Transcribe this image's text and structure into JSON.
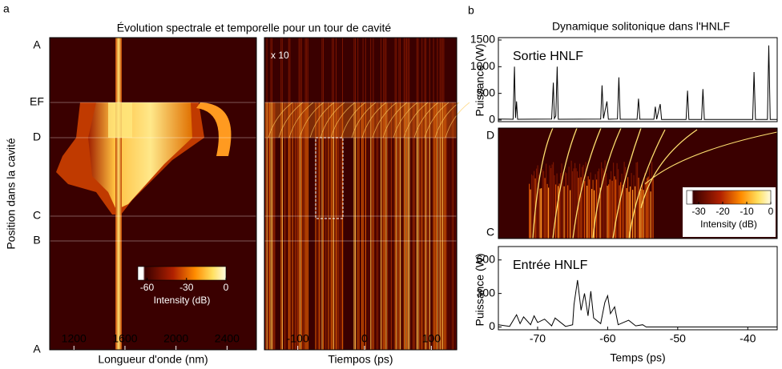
{
  "panel_labels": [
    "a",
    "b"
  ],
  "chart_data": [
    {
      "type": "heatmap",
      "title": "Évolution spectrale et temporelle pour un tour de cavité",
      "xlabel": "Longueur d'onde (nm)",
      "ylabel": "Position dans la cavité",
      "xlim": [
        1010,
        2630
      ],
      "xticks": [
        1200,
        1600,
        2000,
        2400
      ],
      "y_markers": [
        "A",
        "EF",
        "D",
        "C",
        "B",
        "A"
      ],
      "colorbar": {
        "label": "Intensity (dB)",
        "lim": [
          -67,
          0
        ],
        "ticks": [
          -60,
          -30,
          0
        ]
      }
    },
    {
      "type": "heatmap",
      "xlabel": "Tiempos (ps)",
      "xlim": [
        -150,
        138
      ],
      "xticks": [
        -100,
        0,
        100
      ],
      "annotation": "x 10"
    },
    {
      "type": "line",
      "title": "Dynamique solitonique dans l'HNLF",
      "ylabel": "Puissance (W)",
      "annotation": "Sortie HNLF",
      "xlim": [
        -75.6,
        -35.8
      ],
      "ylim": [
        -30,
        1545
      ],
      "yticks": [
        0,
        500,
        1000,
        1500
      ],
      "color": "#000000",
      "x": [
        -75.6,
        -73.5,
        -73.3,
        -73.15,
        -73.0,
        -72.85,
        -68,
        -67.75,
        -67.6,
        -67.4,
        -67.2,
        -67.05,
        -61,
        -60.8,
        -60.6,
        -60.1,
        -59.9,
        -58.6,
        -58.4,
        -58.2,
        -55.8,
        -55.6,
        -55.4,
        -53.4,
        -53.2,
        -53.0,
        -52.5,
        -52.3,
        -48.8,
        -48.6,
        -48.4,
        -46.6,
        -46.4,
        -46.2,
        -39.3,
        -39.1,
        -38.9,
        -37.2,
        -37.0,
        -36.8,
        -35.8
      ],
      "values": [
        20,
        15,
        1000,
        40,
        350,
        15,
        20,
        700,
        30,
        80,
        1000,
        15,
        20,
        650,
        30,
        350,
        15,
        20,
        800,
        15,
        15,
        400,
        15,
        15,
        250,
        15,
        300,
        10,
        10,
        550,
        10,
        10,
        580,
        10,
        10,
        900,
        10,
        10,
        1400,
        10,
        10
      ]
    },
    {
      "type": "heatmap",
      "y_markers": [
        "D",
        "C"
      ],
      "colorbar": {
        "label": "Intensity (dB)",
        "lim": [
          -35,
          0
        ],
        "ticks": [
          -30,
          -20,
          -10,
          0
        ]
      }
    },
    {
      "type": "line",
      "ylabel": "Puissance (W)",
      "annotation": "Entrée HNLF",
      "xlabel": "Temps (ps)",
      "xlim": [
        -75.6,
        -35.8
      ],
      "ylim": [
        -25,
        720
      ],
      "yticks": [
        0,
        300,
        600
      ],
      "xticks": [
        -70,
        -60,
        -50,
        -40
      ],
      "color": "#000000",
      "x": [
        -75.6,
        -74,
        -73,
        -72.5,
        -72,
        -71,
        -70.5,
        -70,
        -69,
        -68,
        -67.5,
        -66,
        -65,
        -64.8,
        -64.3,
        -63.8,
        -63.3,
        -62.8,
        -62.4,
        -62,
        -61,
        -60.4,
        -60,
        -59.6,
        -59,
        -58.5,
        -57,
        -56,
        -55,
        -54.5,
        -35.8
      ],
      "values": [
        20,
        5,
        110,
        30,
        90,
        20,
        100,
        40,
        70,
        10,
        80,
        5,
        20,
        200,
        420,
        150,
        300,
        100,
        320,
        80,
        30,
        220,
        280,
        120,
        180,
        20,
        60,
        10,
        20,
        0,
        0
      ]
    }
  ]
}
